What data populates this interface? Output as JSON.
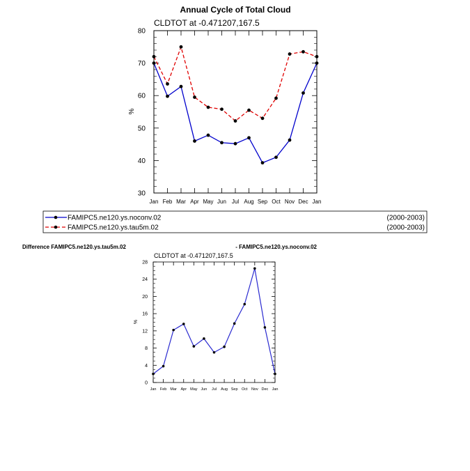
{
  "colors": {
    "series1": "#0000cc",
    "series2": "#e00000",
    "marker": "#000000",
    "diff_line": "#2a2ad0"
  },
  "chart_data": [
    {
      "type": "line",
      "title": "Annual Cycle of Total Cloud",
      "subtitle": "CLDTOT at -0.471207,167.5",
      "xlabel": "",
      "ylabel": "%",
      "ylim": [
        30,
        80
      ],
      "yticks": [
        "30",
        "40",
        "50",
        "60",
        "70",
        "80"
      ],
      "categories": [
        "Jan",
        "Feb",
        "Mar",
        "Apr",
        "May",
        "Jun",
        "Jul",
        "Aug",
        "Sep",
        "Oct",
        "Nov",
        "Dec",
        "Jan"
      ],
      "series": [
        {
          "name": "FAMIPC5.ne120.ys.noconv.02",
          "period": "(2000-2003)",
          "style": "solid",
          "values": [
            70.0,
            59.8,
            62.8,
            46.0,
            47.8,
            45.5,
            45.2,
            47.0,
            39.3,
            41.0,
            46.3,
            60.8,
            70.0
          ]
        },
        {
          "name": "FAMIPC5.ne120.ys.tau5m.02",
          "period": "(2000-2003)",
          "style": "dashed",
          "values": [
            72.0,
            63.6,
            75.0,
            59.5,
            56.4,
            55.8,
            52.2,
            55.5,
            53.0,
            59.2,
            72.8,
            73.5,
            72.0
          ]
        }
      ]
    },
    {
      "type": "line",
      "title_left": "Difference FAMIPC5.ne120.ys.tau5m.02",
      "title_right": "- FAMIPC5.ne120.ys.noconv.02",
      "subtitle": "CLDTOT at -0.471207,167.5",
      "xlabel": "",
      "ylabel": "%",
      "ylim": [
        0,
        28
      ],
      "yticks": [
        "0",
        "4",
        "8",
        "12",
        "16",
        "20",
        "24",
        "28"
      ],
      "categories": [
        "Jan",
        "Feb",
        "Mar",
        "Apr",
        "May",
        "Jun",
        "Jul",
        "Aug",
        "Sep",
        "Oct",
        "Nov",
        "Dec",
        "Jan"
      ],
      "series": [
        {
          "name": "Difference",
          "style": "solid",
          "values": [
            2.0,
            3.8,
            12.2,
            13.6,
            8.4,
            10.2,
            7.0,
            8.3,
            13.7,
            18.2,
            26.5,
            12.8,
            2.0
          ]
        }
      ]
    }
  ]
}
